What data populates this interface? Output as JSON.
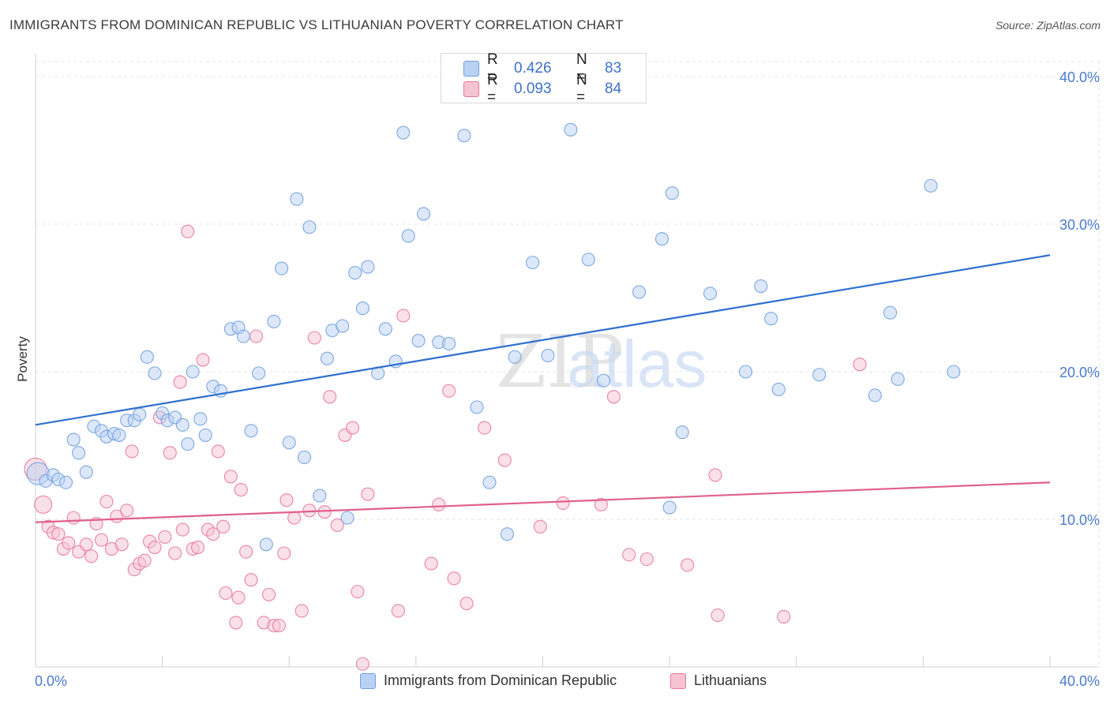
{
  "title": "IMMIGRANTS FROM DOMINICAN REPUBLIC VS LITHUANIAN POVERTY CORRELATION CHART",
  "source": "Source: ZipAtlas.com",
  "watermark": {
    "zip": "ZIP",
    "atlas": "atlas"
  },
  "colors": {
    "blue": "#6f9fe0",
    "blue_fill": "#b9d2f3",
    "pink": "#e8779c",
    "pink_fill": "#f6c3d3",
    "blue_line": "#2e6fd0",
    "pink_line": "#e0608c",
    "tick_text": "#4a7bd0",
    "grid": "#e3e3e3"
  },
  "legend": {
    "rows": [
      {
        "r_label": "R =",
        "r_value": "0.426",
        "n_label": "N =",
        "n_value": "83"
      },
      {
        "r_label": "R =",
        "r_value": "0.093",
        "n_label": "N =",
        "n_value": "84"
      }
    ]
  },
  "bottom_legend": {
    "series1": "Immigrants from Dominican Republic",
    "series2": "Lithuanians"
  },
  "chart_data": {
    "type": "scatter",
    "title": "IMMIGRANTS FROM DOMINICAN REPUBLIC VS LITHUANIAN POVERTY CORRELATION CHART",
    "xlabel": "",
    "ylabel": "Poverty",
    "xlim": [
      0,
      40
    ],
    "ylim": [
      0,
      40
    ],
    "x_tick_labels": [
      "0.0%",
      "40.0%"
    ],
    "y_ticks": [
      10,
      20,
      30,
      40
    ],
    "y_tick_labels": [
      "10.0%",
      "20.0%",
      "30.0%",
      "40.0%"
    ],
    "grid": true,
    "series": [
      {
        "name": "Immigrants from Dominican Republic",
        "color": "#6f9fe0",
        "trend": {
          "x": [
            0,
            40
          ],
          "y": [
            16.4,
            27.9
          ]
        },
        "points": [
          [
            0.1,
            13.1
          ],
          [
            0.4,
            12.6
          ],
          [
            0.7,
            13.0
          ],
          [
            0.9,
            12.7
          ],
          [
            1.2,
            12.5
          ],
          [
            1.5,
            15.4
          ],
          [
            1.7,
            14.5
          ],
          [
            2.0,
            13.2
          ],
          [
            2.3,
            16.3
          ],
          [
            2.6,
            16.0
          ],
          [
            2.8,
            15.6
          ],
          [
            3.1,
            15.8
          ],
          [
            3.3,
            15.7
          ],
          [
            3.6,
            16.7
          ],
          [
            3.9,
            16.7
          ],
          [
            4.1,
            17.1
          ],
          [
            4.4,
            21.0
          ],
          [
            4.7,
            19.9
          ],
          [
            5.0,
            17.2
          ],
          [
            5.2,
            16.7
          ],
          [
            5.5,
            16.9
          ],
          [
            5.8,
            16.4
          ],
          [
            6.0,
            15.1
          ],
          [
            6.2,
            20.0
          ],
          [
            6.5,
            16.8
          ],
          [
            6.7,
            15.7
          ],
          [
            7.0,
            19.0
          ],
          [
            7.3,
            18.7
          ],
          [
            7.7,
            22.9
          ],
          [
            8.0,
            23.0
          ],
          [
            8.2,
            22.4
          ],
          [
            8.5,
            16.0
          ],
          [
            8.8,
            19.9
          ],
          [
            9.1,
            8.3
          ],
          [
            9.4,
            23.4
          ],
          [
            9.7,
            27.0
          ],
          [
            10.0,
            15.2
          ],
          [
            10.3,
            31.7
          ],
          [
            10.6,
            14.2
          ],
          [
            10.8,
            29.8
          ],
          [
            11.2,
            11.6
          ],
          [
            11.5,
            20.9
          ],
          [
            11.7,
            22.8
          ],
          [
            12.1,
            23.1
          ],
          [
            12.3,
            10.1
          ],
          [
            12.6,
            26.7
          ],
          [
            12.9,
            24.3
          ],
          [
            13.1,
            27.1
          ],
          [
            13.5,
            19.9
          ],
          [
            13.8,
            22.9
          ],
          [
            14.2,
            20.7
          ],
          [
            14.5,
            36.2
          ],
          [
            14.7,
            29.2
          ],
          [
            15.1,
            22.1
          ],
          [
            15.3,
            30.7
          ],
          [
            15.9,
            22.0
          ],
          [
            16.3,
            21.9
          ],
          [
            16.9,
            36.0
          ],
          [
            17.4,
            17.6
          ],
          [
            17.9,
            12.5
          ],
          [
            18.6,
            9.0
          ],
          [
            18.9,
            21.0
          ],
          [
            19.6,
            27.4
          ],
          [
            20.2,
            21.1
          ],
          [
            21.1,
            36.4
          ],
          [
            21.8,
            27.6
          ],
          [
            22.4,
            19.4
          ],
          [
            23.8,
            25.4
          ],
          [
            24.7,
            29.0
          ],
          [
            25.1,
            32.1
          ],
          [
            25.5,
            15.9
          ],
          [
            26.6,
            25.3
          ],
          [
            28.0,
            20.0
          ],
          [
            28.6,
            25.8
          ],
          [
            29.0,
            23.6
          ],
          [
            29.3,
            18.8
          ],
          [
            30.9,
            19.8
          ],
          [
            33.1,
            18.4
          ],
          [
            33.7,
            24.0
          ],
          [
            34.0,
            19.5
          ],
          [
            35.3,
            32.6
          ],
          [
            36.2,
            20.0
          ],
          [
            25.0,
            10.8
          ]
        ]
      },
      {
        "name": "Lithuanians",
        "color": "#e8779c",
        "trend": {
          "x": [
            0,
            40
          ],
          "y": [
            9.8,
            12.5
          ]
        },
        "points": [
          [
            0.0,
            13.4
          ],
          [
            0.3,
            11.0
          ],
          [
            0.5,
            9.5
          ],
          [
            0.7,
            9.1
          ],
          [
            0.9,
            9.0
          ],
          [
            1.1,
            8.0
          ],
          [
            1.3,
            8.4
          ],
          [
            1.5,
            10.1
          ],
          [
            1.7,
            7.8
          ],
          [
            2.0,
            8.3
          ],
          [
            2.2,
            7.5
          ],
          [
            2.4,
            9.7
          ],
          [
            2.6,
            8.6
          ],
          [
            2.8,
            11.2
          ],
          [
            3.0,
            8.0
          ],
          [
            3.2,
            10.2
          ],
          [
            3.4,
            8.3
          ],
          [
            3.6,
            10.6
          ],
          [
            3.8,
            14.6
          ],
          [
            3.9,
            6.6
          ],
          [
            4.1,
            7.0
          ],
          [
            4.3,
            7.2
          ],
          [
            4.5,
            8.5
          ],
          [
            4.7,
            8.1
          ],
          [
            4.9,
            16.9
          ],
          [
            5.1,
            8.8
          ],
          [
            5.3,
            14.5
          ],
          [
            5.5,
            7.7
          ],
          [
            5.7,
            19.3
          ],
          [
            5.8,
            9.3
          ],
          [
            6.0,
            29.5
          ],
          [
            6.2,
            8.0
          ],
          [
            6.4,
            8.1
          ],
          [
            6.6,
            20.8
          ],
          [
            6.8,
            9.3
          ],
          [
            7.0,
            9.0
          ],
          [
            7.2,
            14.6
          ],
          [
            7.4,
            9.5
          ],
          [
            7.5,
            5.0
          ],
          [
            7.7,
            12.9
          ],
          [
            7.9,
            3.0
          ],
          [
            8.0,
            4.7
          ],
          [
            8.1,
            12.0
          ],
          [
            8.3,
            7.8
          ],
          [
            8.5,
            5.9
          ],
          [
            8.7,
            22.4
          ],
          [
            9.0,
            3.0
          ],
          [
            9.2,
            4.9
          ],
          [
            9.4,
            2.8
          ],
          [
            9.6,
            2.8
          ],
          [
            9.8,
            7.7
          ],
          [
            9.9,
            11.3
          ],
          [
            10.2,
            10.1
          ],
          [
            10.5,
            3.8
          ],
          [
            10.8,
            10.6
          ],
          [
            11.0,
            22.3
          ],
          [
            11.4,
            10.5
          ],
          [
            11.6,
            18.3
          ],
          [
            11.9,
            9.6
          ],
          [
            12.2,
            15.7
          ],
          [
            12.5,
            16.2
          ],
          [
            12.7,
            5.1
          ],
          [
            12.9,
            0.2
          ],
          [
            13.1,
            11.7
          ],
          [
            14.3,
            3.8
          ],
          [
            14.5,
            23.8
          ],
          [
            15.6,
            7.0
          ],
          [
            15.9,
            11.0
          ],
          [
            16.3,
            18.7
          ],
          [
            16.5,
            6.0
          ],
          [
            17.0,
            4.3
          ],
          [
            17.7,
            16.2
          ],
          [
            18.5,
            14.0
          ],
          [
            19.9,
            9.5
          ],
          [
            20.8,
            11.1
          ],
          [
            22.3,
            11.0
          ],
          [
            22.8,
            18.3
          ],
          [
            23.4,
            7.6
          ],
          [
            24.1,
            7.3
          ],
          [
            25.7,
            6.9
          ],
          [
            26.8,
            13.0
          ],
          [
            26.9,
            3.5
          ],
          [
            32.5,
            20.5
          ],
          [
            29.5,
            3.4
          ]
        ]
      }
    ]
  }
}
